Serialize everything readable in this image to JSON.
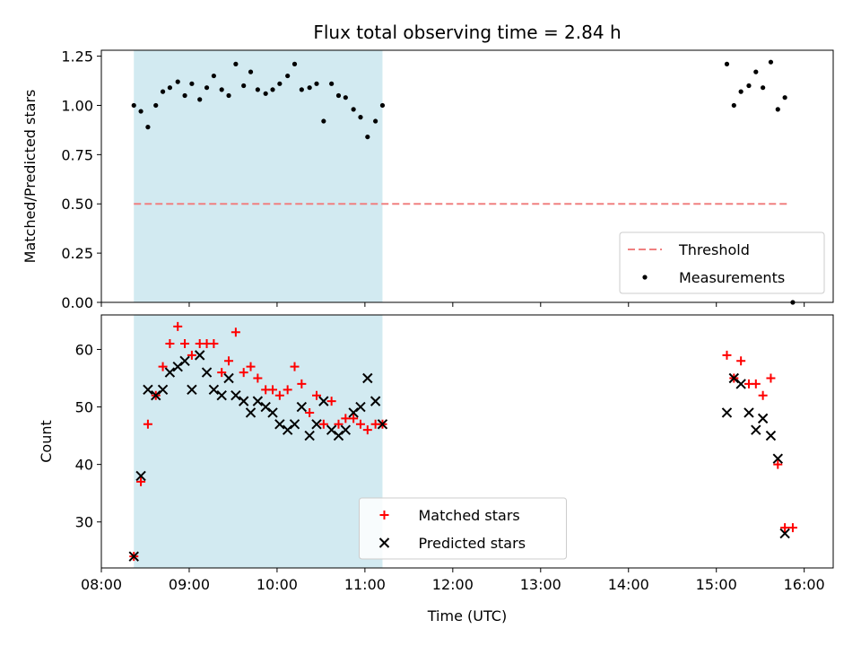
{
  "chart_data": {
    "title": "Flux total observing time = 2.84 h",
    "xlabel": "Time (UTC)",
    "x_unit": "hours (UTC)",
    "xlim": [
      8.0,
      16.33
    ],
    "xticks": [
      {
        "value": 8,
        "label": "08:00"
      },
      {
        "value": 9,
        "label": "09:00"
      },
      {
        "value": 10,
        "label": "10:00"
      },
      {
        "value": 11,
        "label": "11:00"
      },
      {
        "value": 12,
        "label": "12:00"
      },
      {
        "value": 13,
        "label": "13:00"
      },
      {
        "value": 14,
        "label": "14:00"
      },
      {
        "value": 15,
        "label": "15:00"
      },
      {
        "value": 16,
        "label": "16:00"
      }
    ],
    "shaded_region": {
      "x": [
        8.37,
        11.2
      ],
      "color": "#add8e6"
    },
    "panels": [
      {
        "type": "scatter",
        "ylabel": "Matched/Predicted stars",
        "ylim": [
          0,
          1.28
        ],
        "yticks": [
          {
            "value": 0.0,
            "label": "0.00"
          },
          {
            "value": 0.25,
            "label": "0.25"
          },
          {
            "value": 0.5,
            "label": "0.50"
          },
          {
            "value": 0.75,
            "label": "0.75"
          },
          {
            "value": 1.0,
            "label": "1.00"
          },
          {
            "value": 1.25,
            "label": "1.25"
          }
        ],
        "legend_position": "lower-right",
        "threshold": {
          "name": "Threshold",
          "value": 0.5,
          "x": [
            8.37,
            15.83
          ],
          "color": "#f08080"
        },
        "series": [
          {
            "name": "Measurements",
            "color": "#000000",
            "marker": "dot",
            "x": [
              8.37,
              8.45,
              8.53,
              8.62,
              8.7,
              8.78,
              8.87,
              8.95,
              9.03,
              9.12,
              9.2,
              9.28,
              9.37,
              9.45,
              9.53,
              9.62,
              9.7,
              9.78,
              9.87,
              9.95,
              10.03,
              10.12,
              10.2,
              10.28,
              10.37,
              10.45,
              10.53,
              10.62,
              10.7,
              10.78,
              10.87,
              10.95,
              11.03,
              11.12,
              11.2,
              15.12,
              15.2,
              15.28,
              15.37,
              15.45,
              15.53,
              15.62,
              15.7,
              15.78,
              15.87
            ],
            "y": [
              1.0,
              0.97,
              0.89,
              1.0,
              1.07,
              1.09,
              1.12,
              1.05,
              1.11,
              1.03,
              1.09,
              1.15,
              1.08,
              1.05,
              1.21,
              1.1,
              1.17,
              1.08,
              1.06,
              1.08,
              1.11,
              1.15,
              1.21,
              1.08,
              1.09,
              1.11,
              0.92,
              1.11,
              1.05,
              1.04,
              0.98,
              0.94,
              0.84,
              0.92,
              1.0,
              1.21,
              1.0,
              1.07,
              1.1,
              1.17,
              1.09,
              1.22,
              0.98,
              1.04,
              0.0
            ]
          }
        ]
      },
      {
        "type": "scatter",
        "ylabel": "Count",
        "ylim": [
          22,
          66
        ],
        "yticks": [
          {
            "value": 30,
            "label": "30"
          },
          {
            "value": 40,
            "label": "40"
          },
          {
            "value": 50,
            "label": "50"
          },
          {
            "value": 60,
            "label": "60"
          }
        ],
        "legend_position": "lower-center",
        "series": [
          {
            "name": "Matched stars",
            "color": "#ff0000",
            "marker": "plus",
            "x": [
              8.37,
              8.45,
              8.53,
              8.62,
              8.7,
              8.78,
              8.87,
              8.95,
              9.03,
              9.12,
              9.2,
              9.28,
              9.37,
              9.45,
              9.53,
              9.62,
              9.7,
              9.78,
              9.87,
              9.95,
              10.03,
              10.12,
              10.2,
              10.28,
              10.37,
              10.45,
              10.53,
              10.62,
              10.7,
              10.78,
              10.87,
              10.95,
              11.03,
              11.12,
              11.2,
              15.12,
              15.2,
              15.28,
              15.37,
              15.45,
              15.53,
              15.62,
              15.7,
              15.78,
              15.87
            ],
            "y": [
              24,
              37,
              47,
              52,
              57,
              61,
              64,
              61,
              59,
              61,
              61,
              61,
              56,
              58,
              63,
              56,
              57,
              55,
              53,
              53,
              52,
              53,
              57,
              54,
              49,
              52,
              47,
              51,
              47,
              48,
              48,
              47,
              46,
              47,
              47,
              59,
              55,
              58,
              54,
              54,
              52,
              55,
              40,
              29,
              29
            ]
          },
          {
            "name": "Predicted stars",
            "color": "#000000",
            "marker": "x",
            "x": [
              8.37,
              8.45,
              8.53,
              8.62,
              8.7,
              8.78,
              8.87,
              8.95,
              9.03,
              9.12,
              9.2,
              9.28,
              9.37,
              9.45,
              9.53,
              9.62,
              9.7,
              9.78,
              9.87,
              9.95,
              10.03,
              10.12,
              10.2,
              10.28,
              10.37,
              10.45,
              10.53,
              10.62,
              10.7,
              10.78,
              10.87,
              10.95,
              11.03,
              11.12,
              11.2,
              15.12,
              15.2,
              15.28,
              15.37,
              15.45,
              15.53,
              15.62,
              15.7,
              15.78
            ],
            "y": [
              24,
              38,
              53,
              52,
              53,
              56,
              57,
              58,
              53,
              59,
              56,
              53,
              52,
              55,
              52,
              51,
              49,
              51,
              50,
              49,
              47,
              46,
              47,
              50,
              45,
              47,
              51,
              46,
              45,
              46,
              49,
              50,
              55,
              51,
              47,
              49,
              55,
              54,
              49,
              46,
              48,
              45,
              41,
              28
            ]
          }
        ]
      }
    ]
  }
}
